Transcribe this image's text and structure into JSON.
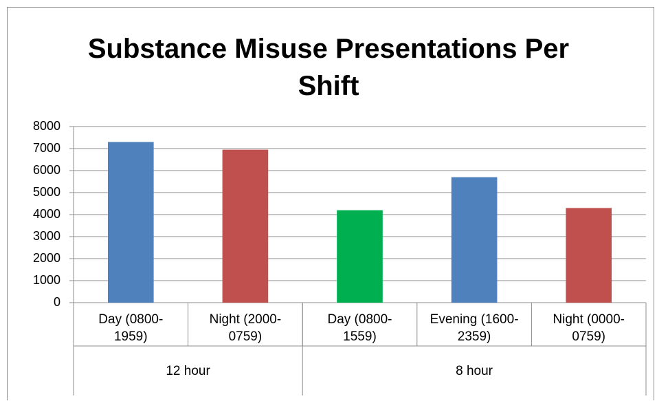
{
  "chart_data": {
    "type": "bar",
    "title": "Substance Misuse Presentations Per Shift",
    "categories": [
      "Day (0800-\n1959)",
      "Night (2000-\n0759)",
      "Day (0800-\n1559)",
      "Evening (1600-\n2359)",
      "Night (0000-\n0759)"
    ],
    "groups": [
      {
        "name": "12 hour",
        "count": 2
      },
      {
        "name": "8 hour",
        "count": 3
      }
    ],
    "values": [
      7300,
      6950,
      4200,
      5700,
      4300
    ],
    "colors": [
      "#4f81bd",
      "#c0504d",
      "#00b050",
      "#4f81bd",
      "#c0504d"
    ],
    "ylim": [
      0,
      8000
    ],
    "yticks": [
      0,
      1000,
      2000,
      3000,
      4000,
      5000,
      6000,
      7000,
      8000
    ],
    "grid": true
  }
}
